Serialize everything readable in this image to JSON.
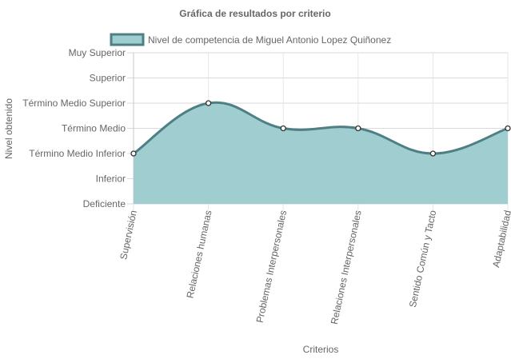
{
  "chart_data": {
    "type": "area",
    "title": "Gráfica de resultados por criterio",
    "xlabel": "Criterios",
    "ylabel": "Nivel obtenido",
    "categories": [
      "Supervisión",
      "Relaciones humanas",
      "Problemas Interpersonales",
      "Relaciones Interpersonales",
      "Sentido Común y Tacto",
      "Adaptabilidad"
    ],
    "y_levels": [
      "Deficiente",
      "Inferior",
      "Término Medio Inferior",
      "Término Medio",
      "Término Medio Superior",
      "Superior",
      "Muy Superior"
    ],
    "ylim": [
      0,
      6
    ],
    "grid": true,
    "legend_position": "top",
    "series": [
      {
        "name": "Nivel de competencia de Miguel Antonio Lopez Quiñonez",
        "values": [
          2,
          4,
          3,
          3,
          2,
          3
        ],
        "fill_color": "#9fcdd0",
        "line_color": "#4e7f84"
      }
    ]
  }
}
